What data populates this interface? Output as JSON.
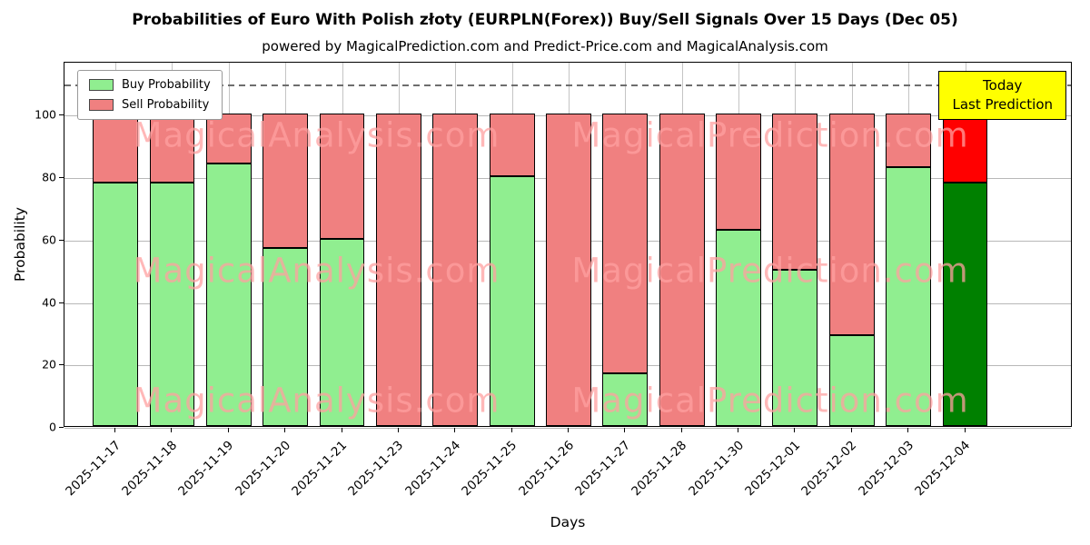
{
  "chart_data": {
    "type": "bar",
    "stacked": true,
    "title": "Probabilities of Euro With Polish złoty (EURPLN(Forex)) Buy/Sell Signals Over 15 Days (Dec 05)",
    "subtitle": "powered by MagicalPrediction.com and Predict-Price.com and MagicalAnalysis.com",
    "xlabel": "Days",
    "ylabel": "Probability",
    "categories": [
      "2025-11-17",
      "2025-11-18",
      "2025-11-19",
      "2025-11-20",
      "2025-11-21",
      "2025-11-23",
      "2025-11-24",
      "2025-11-25",
      "2025-11-26",
      "2025-11-27",
      "2025-11-28",
      "2025-11-30",
      "2025-12-01",
      "2025-12-02",
      "2025-12-03",
      "2025-12-04"
    ],
    "series": [
      {
        "name": "Buy Probability",
        "color": "#90ee90",
        "values": [
          78,
          78,
          84,
          57,
          60,
          0,
          0,
          80,
          0,
          17,
          0,
          63,
          50,
          29,
          83,
          78
        ]
      },
      {
        "name": "Sell Probability",
        "color": "#f08080",
        "values": [
          22,
          22,
          16,
          43,
          40,
          100,
          100,
          20,
          100,
          83,
          100,
          37,
          50,
          71,
          17,
          22
        ]
      }
    ],
    "today_bar": {
      "index": 15,
      "buy_color": "#008000",
      "sell_color": "#ff0000"
    },
    "ylim": [
      0,
      117
    ],
    "yticks": [
      0,
      20,
      40,
      60,
      80,
      100
    ],
    "dashed_line_y": 110,
    "grid": true,
    "legend_position": "upper left",
    "annotation": {
      "line1": "Today",
      "line2": "Last Prediction",
      "bg_color": "#ffff00"
    },
    "watermarks": [
      "MagicalAnalysis.com",
      "MagicalPrediction.com"
    ]
  }
}
